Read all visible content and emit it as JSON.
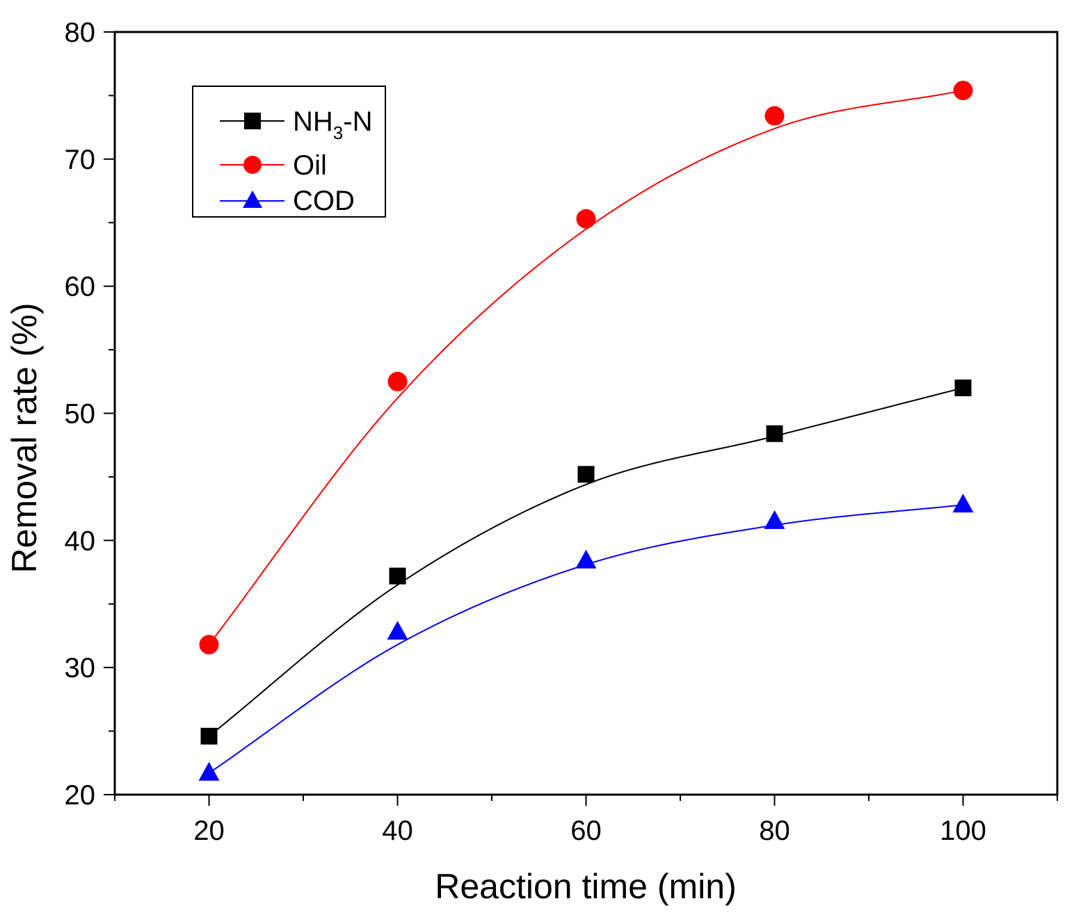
{
  "chart_data": {
    "type": "line",
    "title": "",
    "xlabel": "Reaction time (min)",
    "ylabel": "Removal rate (%)",
    "xlim": [
      10,
      110
    ],
    "ylim": [
      20,
      80
    ],
    "xticks": [
      20,
      40,
      60,
      80,
      100
    ],
    "yticks": [
      20,
      30,
      40,
      50,
      60,
      70,
      80
    ],
    "x": [
      20,
      40,
      60,
      80,
      100
    ],
    "legend_position": "top-left",
    "series": [
      {
        "name": "NH3-N",
        "label_main": "NH",
        "label_sub": "3",
        "label_tail": "-N",
        "marker": "square",
        "color": "#000000",
        "values": [
          24.6,
          37.2,
          45.2,
          48.4,
          52.0
        ],
        "fit": [
          24.6,
          36.5,
          44.4,
          48.2,
          52.0
        ]
      },
      {
        "name": "Oil",
        "marker": "circle",
        "color": "#ff0000",
        "values": [
          31.8,
          52.5,
          65.3,
          73.4,
          75.4
        ],
        "fit": [
          31.8,
          51.2,
          64.5,
          72.4,
          75.4
        ]
      },
      {
        "name": "COD",
        "marker": "triangle",
        "color": "#0000ff",
        "values": [
          21.7,
          32.8,
          38.4,
          41.5,
          42.8
        ],
        "fit": [
          21.7,
          31.8,
          38.1,
          41.2,
          42.8
        ]
      }
    ]
  }
}
